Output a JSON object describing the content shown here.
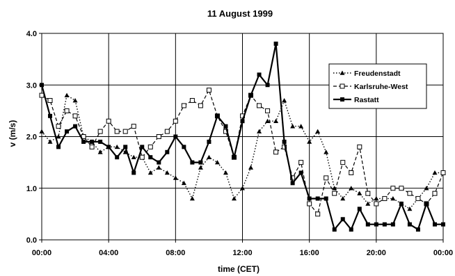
{
  "chart_data": {
    "type": "line",
    "title": "11 August 1999",
    "xlabel": "time  (CET)",
    "ylabel": "v   (m/s)",
    "xlim": [
      0,
      24
    ],
    "ylim": [
      0,
      4
    ],
    "grid": true,
    "legend_position": "top-right",
    "x_tick_labels": [
      "00:00",
      "04:00",
      "08:00",
      "12:00",
      "16:00",
      "20:00",
      "00:00"
    ],
    "y_tick_labels": [
      "0.0",
      "1.0",
      "2.0",
      "3.0",
      "4.0"
    ],
    "x": [
      0.0,
      0.5,
      1.0,
      1.5,
      2.0,
      2.5,
      3.0,
      3.5,
      4.0,
      4.5,
      5.0,
      5.5,
      6.0,
      6.5,
      7.0,
      7.5,
      8.0,
      8.5,
      9.0,
      9.5,
      10.0,
      10.5,
      11.0,
      11.5,
      12.0,
      12.5,
      13.0,
      13.5,
      14.0,
      14.5,
      15.0,
      15.5,
      16.0,
      16.5,
      17.0,
      17.5,
      18.0,
      18.5,
      19.0,
      19.5,
      20.0,
      20.5,
      21.0,
      21.5,
      22.0,
      22.5,
      23.0,
      23.5,
      24.0
    ],
    "series": [
      {
        "name": "Freudenstadt",
        "style": "dotted",
        "marker": "triangle",
        "values": [
          2.1,
          1.9,
          2.0,
          2.8,
          2.7,
          2.0,
          1.9,
          1.7,
          1.8,
          1.8,
          1.7,
          1.6,
          1.6,
          1.3,
          1.4,
          1.3,
          1.2,
          1.1,
          0.8,
          1.4,
          1.6,
          1.5,
          1.3,
          0.8,
          1.0,
          1.4,
          2.1,
          2.3,
          2.3,
          2.7,
          2.2,
          2.2,
          1.9,
          2.1,
          1.7,
          1.0,
          0.8,
          1.0,
          0.9,
          0.7,
          0.8,
          0.8,
          0.8,
          0.7,
          0.6,
          0.8,
          1.0,
          1.3,
          1.3
        ]
      },
      {
        "name": "Karlsruhe-West",
        "style": "dashed",
        "marker": "square-open",
        "values": [
          2.8,
          2.7,
          2.2,
          2.5,
          2.4,
          2.0,
          1.8,
          2.1,
          2.3,
          2.1,
          2.1,
          2.2,
          1.6,
          1.8,
          2.0,
          2.1,
          2.3,
          2.6,
          2.7,
          2.6,
          2.9,
          2.4,
          2.1,
          1.6,
          2.4,
          2.8,
          2.6,
          2.5,
          1.7,
          1.8,
          1.2,
          1.5,
          0.7,
          0.5,
          1.2,
          0.9,
          1.5,
          1.3,
          1.8,
          0.9,
          0.7,
          0.8,
          1.0,
          1.0,
          0.9,
          0.8,
          0.7,
          0.9,
          1.3
        ]
      },
      {
        "name": "Rastatt",
        "style": "solid",
        "marker": "square-filled",
        "values": [
          3.0,
          2.4,
          1.8,
          2.1,
          2.2,
          1.9,
          1.9,
          1.9,
          1.8,
          1.6,
          1.8,
          1.3,
          1.8,
          1.6,
          1.5,
          1.7,
          2.0,
          1.8,
          1.5,
          1.5,
          1.9,
          2.4,
          2.2,
          1.6,
          2.3,
          2.8,
          3.2,
          3.0,
          3.8,
          1.9,
          1.1,
          1.3,
          0.8,
          0.8,
          0.8,
          0.2,
          0.4,
          0.2,
          0.6,
          0.3,
          0.3,
          0.3,
          0.3,
          0.7,
          0.3,
          0.2,
          0.7,
          0.3,
          0.3
        ]
      }
    ]
  }
}
